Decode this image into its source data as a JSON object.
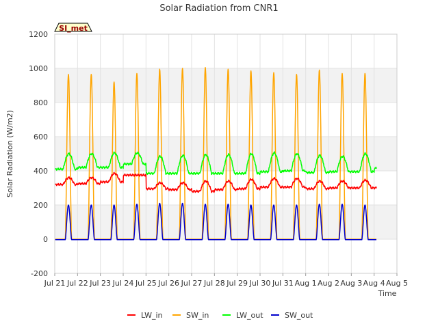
{
  "chart_data": {
    "type": "line",
    "title": "Solar Radiation from CNR1",
    "xlabel": "Time",
    "ylabel": "Solar Radiation (W/m2)",
    "ylim": [
      -200,
      1200
    ],
    "yticks": [
      "-200",
      "0",
      "200",
      "400",
      "600",
      "800",
      "1000",
      "1200"
    ],
    "x_range_days": [
      "2024-07-21",
      "2024-08-05"
    ],
    "xticks": [
      "Jul 21",
      "Jul 22",
      "Jul 23",
      "Jul 24",
      "Jul 25",
      "Jul 26",
      "Jul 27",
      "Jul 28",
      "Jul 29",
      "Jul 30",
      "Jul 31",
      "Aug 1",
      "Aug 2",
      "Aug 3",
      "Aug 4",
      "Aug 5"
    ],
    "badge": "SI_met",
    "background_bands": true,
    "legend_position": "bottom-center",
    "daily_peak_day": [
      "Jul 21",
      "Jul 22",
      "Jul 23",
      "Jul 24",
      "Jul 25",
      "Jul 26",
      "Jul 27",
      "Jul 28",
      "Jul 29",
      "Jul 30",
      "Jul 31",
      "Aug 1",
      "Aug 2",
      "Aug 3",
      "Aug 4"
    ],
    "series": [
      {
        "name": "LW_in",
        "color": "#ff0000",
        "daily_night_level": [
          320,
          325,
          335,
          375,
          295,
          290,
          280,
          290,
          295,
          305,
          305,
          295,
          300,
          300,
          300
        ],
        "daily_day_peak": [
          360,
          360,
          385,
          375,
          330,
          330,
          340,
          340,
          350,
          355,
          355,
          340,
          340,
          345,
          340
        ]
      },
      {
        "name": "SW_in",
        "color": "#ffa500",
        "daily_night_level": [
          0,
          0,
          0,
          0,
          0,
          0,
          0,
          0,
          0,
          0,
          0,
          0,
          0,
          0,
          0
        ],
        "daily_day_peak": [
          965,
          965,
          920,
          970,
          995,
          1000,
          1005,
          995,
          985,
          975,
          965,
          990,
          970,
          970,
          970
        ]
      },
      {
        "name": "LW_out",
        "color": "#00ff00",
        "daily_night_level": [
          410,
          420,
          420,
          440,
          385,
          385,
          385,
          385,
          385,
          395,
          400,
          390,
          395,
          395,
          415
        ],
        "daily_day_peak": [
          500,
          500,
          505,
          505,
          485,
          490,
          495,
          495,
          500,
          505,
          500,
          490,
          485,
          500,
          500
        ]
      },
      {
        "name": "SW_out",
        "color": "#0000cc",
        "daily_night_level": [
          -3,
          -3,
          -3,
          -3,
          -3,
          -3,
          -3,
          -3,
          -3,
          -3,
          -3,
          -3,
          -3,
          -3,
          -3
        ],
        "daily_day_peak": [
          200,
          200,
          200,
          205,
          210,
          210,
          205,
          205,
          200,
          200,
          200,
          205,
          205,
          200,
          200
        ]
      }
    ]
  }
}
